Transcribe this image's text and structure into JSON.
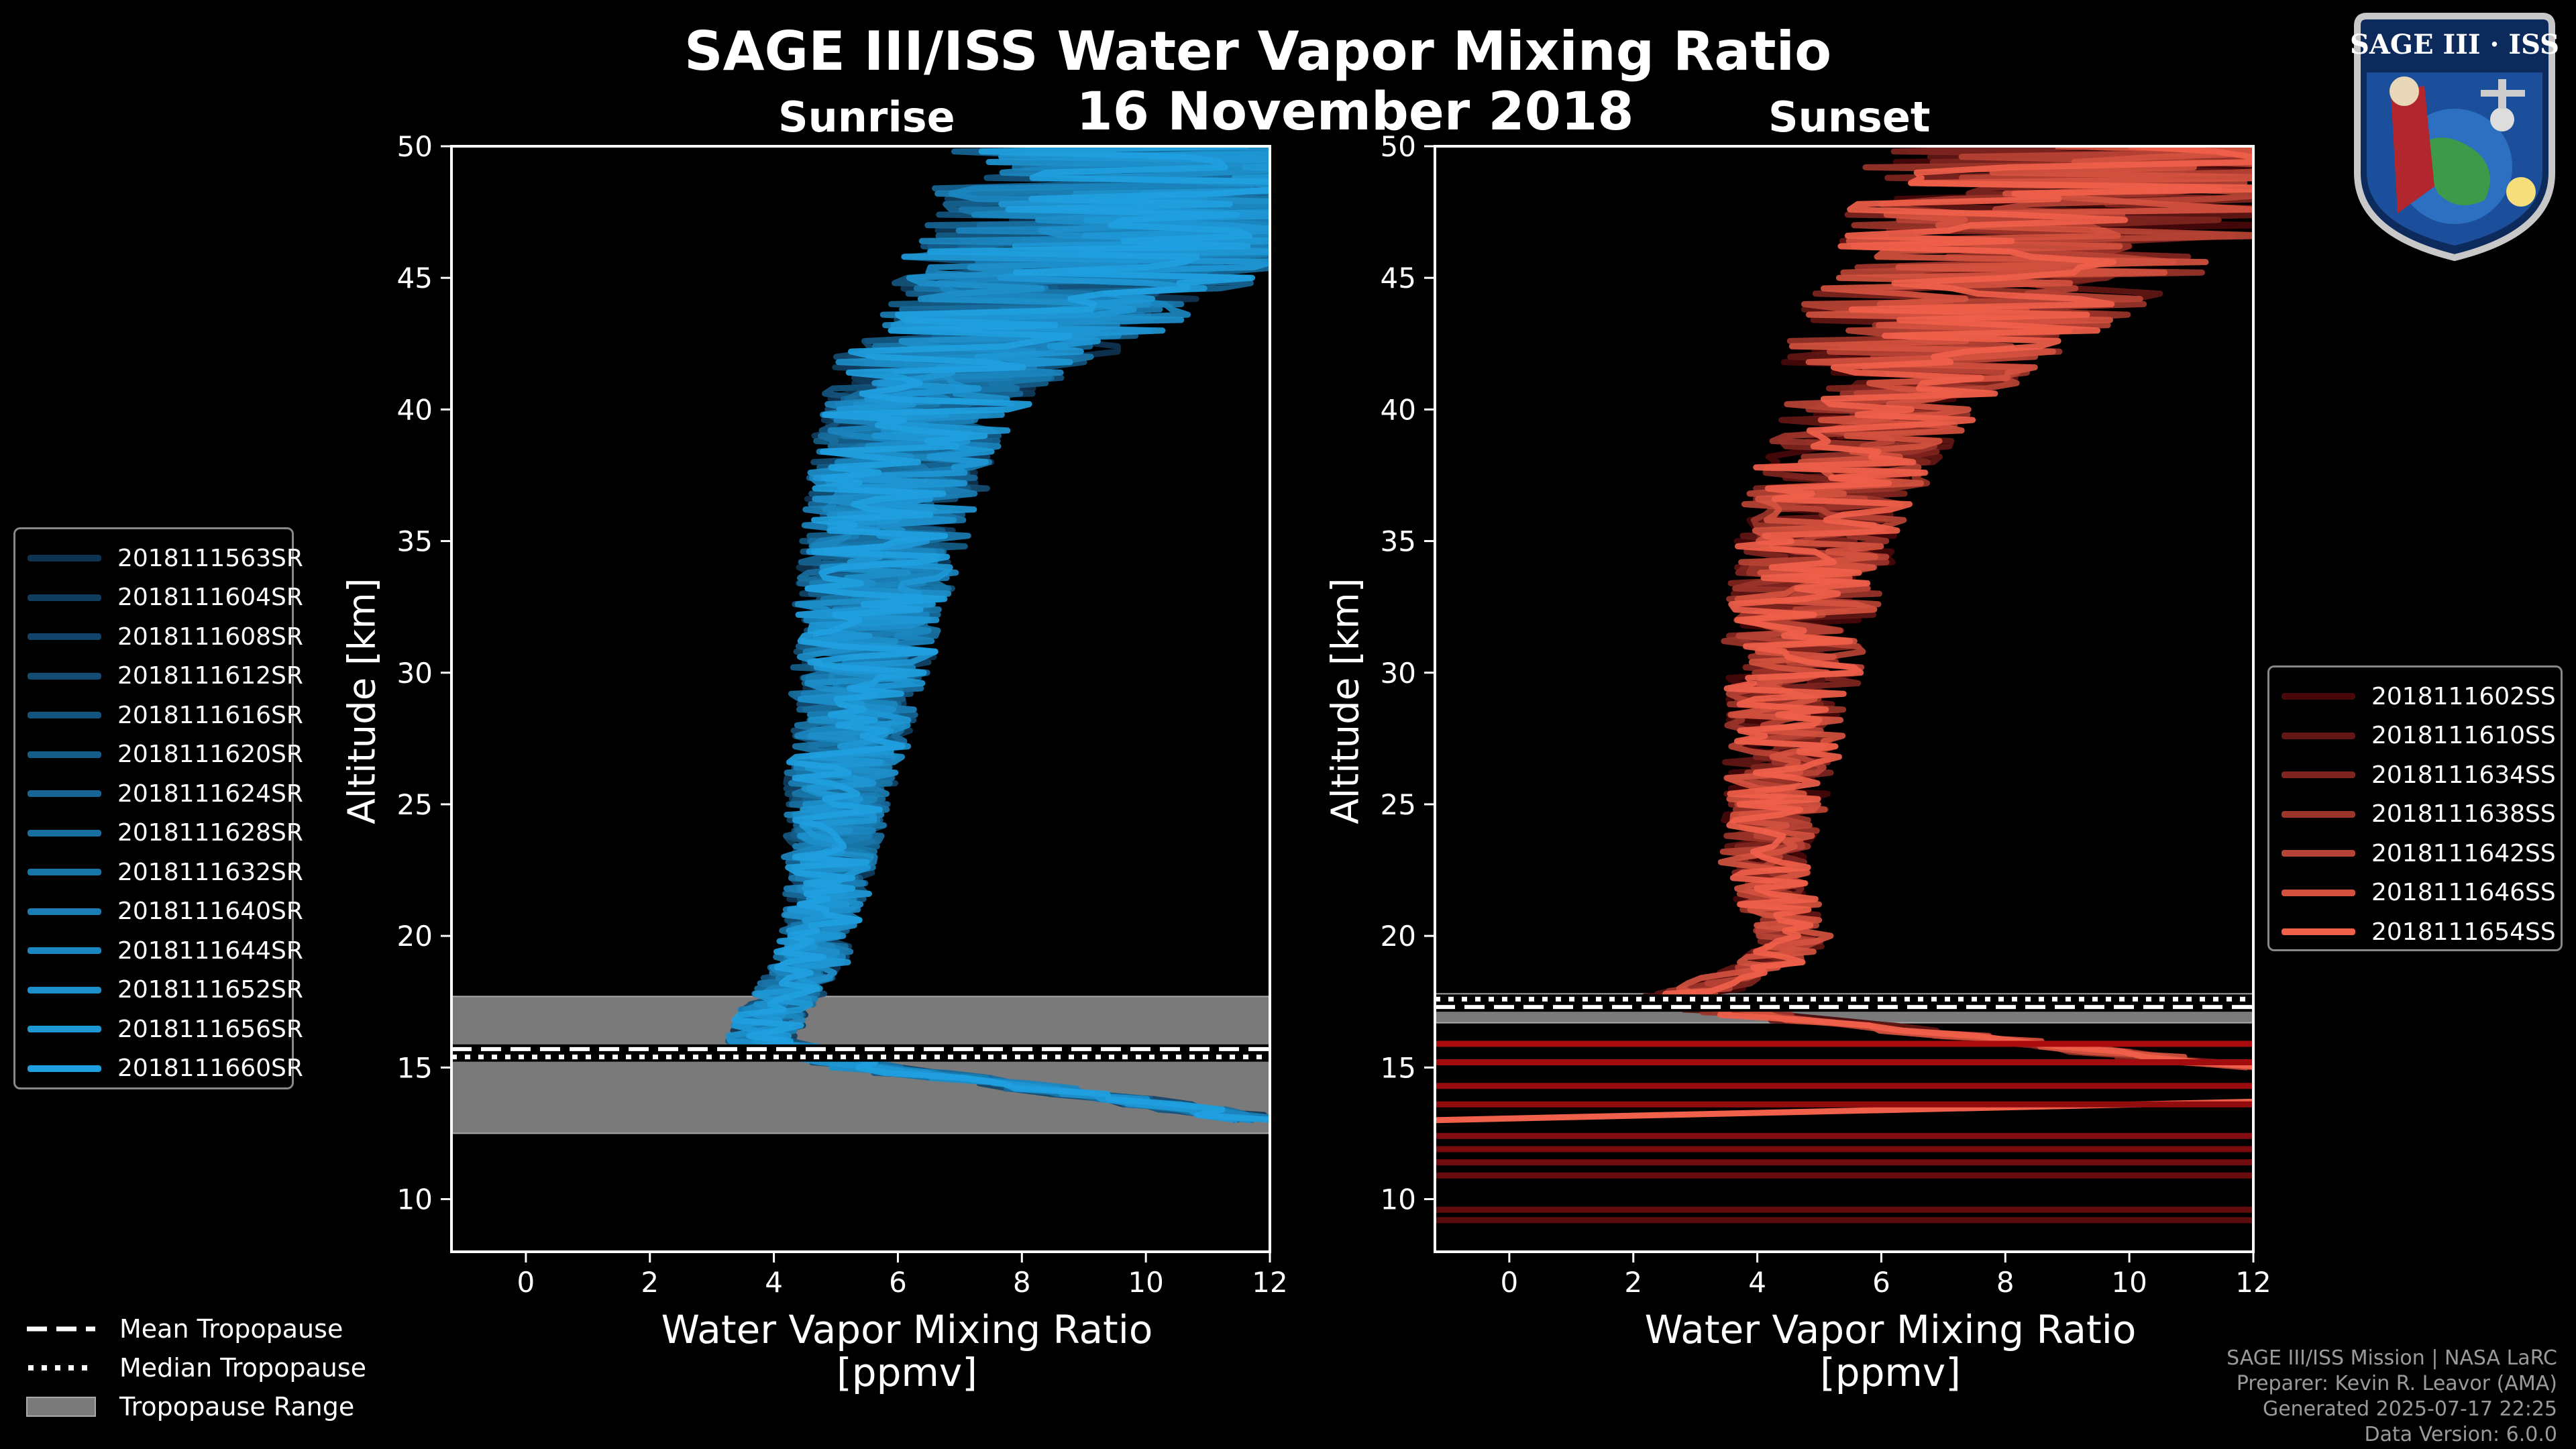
{
  "title": "SAGE III/ISS Water Vapor Mixing Ratio",
  "date": "16 November 2018",
  "panels": {
    "sunrise": {
      "label": "Sunrise",
      "ylabel": "Altitude [km]",
      "xlabel_line1": "Water Vapor Mixing Ratio",
      "xlabel_line2": "[ppmv]"
    },
    "sunset": {
      "label": "Sunset",
      "ylabel": "Altitude [km]",
      "xlabel_line1": "Water Vapor Mixing Ratio",
      "xlabel_line2": "[ppmv]"
    }
  },
  "bottom_legend": {
    "mean": "Mean Tropopause",
    "median": "Median Tropopause",
    "range": "Tropopause Range"
  },
  "footer": [
    "SAGE III/ISS Mission | NASA LaRC",
    "Preparer: Kevin R. Leavor (AMA)",
    "Generated 2025-07-17 22:25",
    "Data Version: 6.0.0"
  ],
  "logo": {
    "name": "SAGE III · ISS"
  },
  "colors": {
    "sunrise": "#1f9fe0",
    "sunset": "#f0604a",
    "background": "#000000",
    "trop_range": "#7a7a7a"
  },
  "chart_data": [
    {
      "type": "line",
      "title": "Sunrise",
      "xlabel": "Water Vapor Mixing Ratio [ppmv]",
      "ylabel": "Altitude [km]",
      "xlim": [
        -1.2,
        12
      ],
      "ylim": [
        8,
        50
      ],
      "xticks": [
        0,
        2,
        4,
        6,
        8,
        10,
        12
      ],
      "yticks": [
        10,
        15,
        20,
        25,
        30,
        35,
        40,
        45,
        50
      ],
      "tropopause": {
        "mean": 15.7,
        "median": 15.4,
        "range": [
          12.5,
          17.7
        ]
      },
      "legend": [
        "2018111563SR",
        "2018111604SR",
        "2018111608SR",
        "2018111612SR",
        "2018111616SR",
        "2018111620SR",
        "2018111624SR",
        "2018111628SR",
        "2018111632SR",
        "2018111640SR",
        "2018111644SR",
        "2018111652SR",
        "2018111656SR",
        "2018111660SR"
      ],
      "profile_template": {
        "altitude": [
          13,
          14,
          15,
          16,
          17,
          18,
          19,
          20,
          21,
          22,
          23,
          24,
          25,
          26,
          27,
          28,
          29,
          30,
          31,
          32,
          33,
          34,
          35,
          36,
          37,
          38,
          39,
          40,
          41,
          42,
          43,
          44,
          45,
          46,
          47,
          48,
          49,
          50
        ],
        "values": [
          12.0,
          9.0,
          5.5,
          3.8,
          4.0,
          4.3,
          4.6,
          4.7,
          4.8,
          4.9,
          4.9,
          5.0,
          5.0,
          5.1,
          5.2,
          5.3,
          5.3,
          5.4,
          5.5,
          5.5,
          5.6,
          5.7,
          5.8,
          5.9,
          6.0,
          6.1,
          6.2,
          6.4,
          6.7,
          7.2,
          7.8,
          8.5,
          9.0,
          9.5,
          10.0,
          10.5,
          11.0,
          11.5
        ]
      }
    },
    {
      "type": "line",
      "title": "Sunset",
      "xlabel": "Water Vapor Mixing Ratio [ppmv]",
      "ylabel": "Altitude [km]",
      "xlim": [
        -1.2,
        12
      ],
      "ylim": [
        8,
        50
      ],
      "xticks": [
        0,
        2,
        4,
        6,
        8,
        10,
        12
      ],
      "yticks": [
        10,
        15,
        20,
        25,
        30,
        35,
        40,
        45,
        50
      ],
      "tropopause": {
        "mean": 17.3,
        "median": 17.6,
        "range": [
          16.7,
          17.8
        ]
      },
      "legend": [
        "2018111602SS",
        "2018111610SS",
        "2018111634SS",
        "2018111638SS",
        "2018111642SS",
        "2018111646SS",
        "2018111654SS"
      ],
      "profile_template": {
        "altitude": [
          15,
          16,
          17,
          17.5,
          18,
          19,
          20,
          21,
          22,
          23,
          24,
          25,
          26,
          27,
          28,
          29,
          30,
          31,
          32,
          33,
          34,
          35,
          36,
          37,
          38,
          39,
          40,
          41,
          42,
          43,
          44,
          45,
          46,
          47,
          48,
          49,
          50
        ],
        "values": [
          12.0,
          8.0,
          4.0,
          2.5,
          3.2,
          4.2,
          4.6,
          4.4,
          4.2,
          4.1,
          4.2,
          4.3,
          4.3,
          4.4,
          4.5,
          4.5,
          4.6,
          4.6,
          4.7,
          4.8,
          4.9,
          5.0,
          5.1,
          5.3,
          5.5,
          5.8,
          6.0,
          6.3,
          6.6,
          7.0,
          7.5,
          8.0,
          8.6,
          9.0,
          9.5,
          10.0,
          10.5
        ]
      }
    }
  ]
}
